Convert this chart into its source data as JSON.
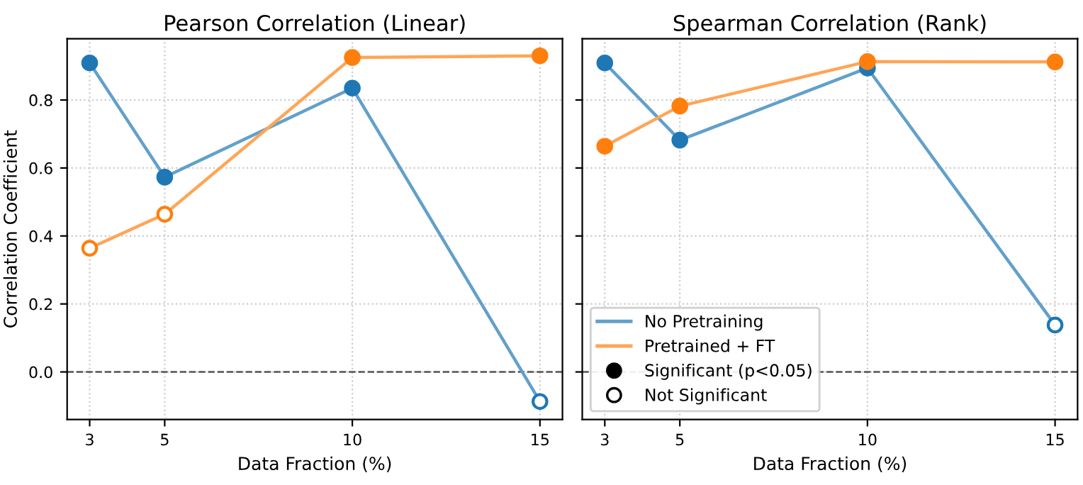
{
  "chart_data": [
    {
      "type": "line",
      "title": "Pearson Correlation (Linear)",
      "xlabel": "Data Fraction (%)",
      "ylabel": "Correlation Coefficient",
      "x": [
        3,
        5,
        10,
        15
      ],
      "xlim": [
        2.4,
        15.6
      ],
      "xticks": [
        3,
        5,
        10,
        15
      ],
      "ylim": [
        -0.14,
        0.98
      ],
      "yticks": [
        {
          "value": 0,
          "label": "0.0"
        },
        0.2,
        0.4,
        0.6,
        0.8
      ],
      "grid": true,
      "legend": false,
      "line_style": "solid",
      "ref_lines": [
        {
          "axis": "y",
          "value": 0,
          "color": "#555555",
          "line_style": "dashed"
        }
      ],
      "series": [
        {
          "color": "#62a0ca",
          "values": [
            0.909,
            0.573,
            0.835,
            -0.087
          ]
        },
        {
          "color": "#ffa556",
          "values": [
            0.364,
            0.464,
            0.925,
            0.93
          ]
        },
        {
          "type": "scatter",
          "marker": "circle",
          "x": [
            3,
            5,
            10,
            10,
            15
          ],
          "values": [
            0.909,
            0.573,
            0.835,
            0.925,
            0.93
          ],
          "colors": [
            "#1f77b4",
            "#1f77b4",
            "#1f77b4",
            "#ff7f0e",
            "#ff7f0e"
          ]
        },
        {
          "type": "scatter",
          "marker": "circle",
          "color": "#ffffff",
          "x": [
            15,
            3,
            5
          ],
          "values": [
            -0.087,
            0.364,
            0.464
          ],
          "colors": [
            "#1f77b4",
            "#ff7f0e",
            "#ff7f0e"
          ]
        }
      ]
    },
    {
      "type": "line",
      "title": "Spearman Correlation (Rank)",
      "xlabel": "Data Fraction (%)",
      "x": [
        3,
        5,
        10,
        15
      ],
      "xlim": [
        2.4,
        15.6
      ],
      "xticks": [
        3,
        5,
        10,
        15
      ],
      "ylim": [
        -0.14,
        0.98
      ],
      "yticks": [
        0,
        0.2,
        0.4,
        0.6,
        0.8
      ],
      "tick_labels": "x",
      "grid": true,
      "legend": "lower left",
      "line_style": "solid",
      "annotations": [
        "Significant (p<0.05)",
        "Not Significant"
      ],
      "ref_lines": [
        {
          "axis": "y",
          "value": 0,
          "color": "#555555",
          "line_style": "dashed"
        }
      ],
      "series": [
        {
          "name": "No Pretraining",
          "color": "#62a0ca",
          "values": [
            0.909,
            0.682,
            0.894,
            0.138
          ]
        },
        {
          "name": "Pretrained + FT",
          "color": "#ffa556",
          "values": [
            0.664,
            0.782,
            0.913,
            0.912
          ]
        },
        {
          "type": "scatter",
          "marker": "circle",
          "x": [
            3,
            5,
            10,
            3,
            5,
            10,
            15
          ],
          "values": [
            0.909,
            0.682,
            0.894,
            0.664,
            0.782,
            0.913,
            0.912
          ],
          "colors": [
            "#1f77b4",
            "#1f77b4",
            "#1f77b4",
            "#ff7f0e",
            "#ff7f0e",
            "#ff7f0e",
            "#ff7f0e"
          ]
        },
        {
          "type": "scatter",
          "marker": "circle",
          "color": "#ffffff",
          "x": [
            15
          ],
          "values": [
            0.138
          ],
          "colors": [
            "#1f77b4"
          ]
        }
      ]
    }
  ]
}
